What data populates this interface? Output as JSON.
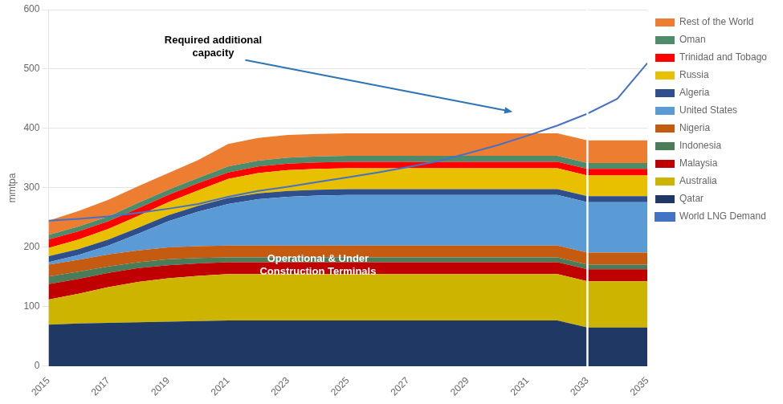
{
  "chart_data": {
    "type": "area",
    "stacked": true,
    "x": [
      2015,
      2016,
      2017,
      2018,
      2019,
      2020,
      2021,
      2022,
      2023,
      2024,
      2025,
      2026,
      2027,
      2028,
      2029,
      2030,
      2031,
      2032,
      2033,
      2034,
      2035
    ],
    "xlim": [
      2015,
      2035
    ],
    "xticks": [
      2015,
      2017,
      2019,
      2021,
      2023,
      2025,
      2027,
      2029,
      2031,
      2033,
      2035
    ],
    "ylim": [
      0,
      600
    ],
    "yticks": [
      0,
      100,
      200,
      300,
      400,
      500,
      600
    ],
    "ylabel": "mmtpa",
    "grid": true,
    "legend": "right",
    "series": [
      {
        "name": "Qatar",
        "color": "#1F3864",
        "values": [
          70,
          72,
          73,
          74,
          75,
          76,
          77,
          77,
          77,
          77,
          77,
          77,
          77,
          77,
          77,
          77,
          77,
          77,
          65,
          65,
          65
        ]
      },
      {
        "name": "Australia",
        "color": "#CDB400",
        "values": [
          42,
          50,
          60,
          68,
          73,
          76,
          78,
          78,
          78,
          78,
          78,
          78,
          78,
          78,
          78,
          78,
          78,
          78,
          78,
          78,
          78
        ]
      },
      {
        "name": "Malaysia",
        "color": "#C00000",
        "values": [
          26,
          25,
          24,
          23,
          22,
          21,
          20,
          20,
          20,
          20,
          20,
          20,
          20,
          20,
          20,
          20,
          20,
          20,
          20,
          20,
          20
        ]
      },
      {
        "name": "Indonesia",
        "color": "#4A7C59",
        "values": [
          13,
          12,
          11,
          10,
          10,
          9,
          8,
          8,
          8,
          8,
          8,
          8,
          8,
          8,
          8,
          8,
          8,
          8,
          8,
          8,
          8
        ]
      },
      {
        "name": "Nigeria",
        "color": "#C55A11",
        "values": [
          20,
          20,
          20,
          20,
          20,
          20,
          20,
          20,
          20,
          20,
          20,
          20,
          20,
          20,
          20,
          20,
          20,
          20,
          20,
          20,
          20
        ]
      },
      {
        "name": "United States",
        "color": "#5B9BD5",
        "values": [
          4,
          8,
          15,
          28,
          44,
          58,
          70,
          78,
          82,
          84,
          85,
          85,
          85,
          85,
          85,
          85,
          85,
          85,
          85,
          85,
          85
        ]
      },
      {
        "name": "Algeria",
        "color": "#2E4F8C",
        "values": [
          10,
          10,
          10,
          10,
          10,
          10,
          10,
          10,
          10,
          10,
          10,
          10,
          10,
          10,
          10,
          10,
          10,
          10,
          10,
          10,
          10
        ]
      },
      {
        "name": "Russia",
        "color": "#E8C000",
        "values": [
          14,
          16,
          18,
          20,
          22,
          26,
          32,
          34,
          35,
          35,
          35,
          35,
          35,
          35,
          35,
          35,
          35,
          35,
          35,
          35,
          35
        ]
      },
      {
        "name": "Trinidad and Tobago",
        "color": "#FF0000",
        "values": [
          14,
          14,
          13,
          13,
          12,
          12,
          11,
          11,
          11,
          11,
          11,
          11,
          11,
          11,
          11,
          11,
          11,
          11,
          11,
          11,
          11
        ]
      },
      {
        "name": "Oman",
        "color": "#4E8B6A",
        "values": [
          8,
          8,
          8,
          9,
          9,
          9,
          10,
          10,
          10,
          10,
          10,
          10,
          10,
          10,
          10,
          10,
          10,
          10,
          10,
          10,
          10
        ]
      },
      {
        "name": "Rest of the World",
        "color": "#ED7D31",
        "values": [
          24,
          26,
          28,
          28,
          28,
          30,
          38,
          38,
          38,
          38,
          38,
          38,
          38,
          38,
          38,
          38,
          38,
          38,
          38,
          38,
          38
        ]
      },
      {
        "name": "World LNG Demand",
        "type": "line",
        "color": "#4472C4",
        "values": [
          245,
          248,
          252,
          258,
          265,
          273,
          285,
          295,
          302,
          310,
          318,
          326,
          335,
          345,
          358,
          372,
          388,
          405,
          425,
          450,
          510
        ]
      }
    ],
    "reference_lines": [
      {
        "x": 2033,
        "color": "#FFFFFF"
      }
    ],
    "annotations": [
      {
        "text": "Required additional\ncapacity",
        "x": 2020.5,
        "y": 518,
        "arrow_to": [
          2030.5,
          428
        ],
        "color": "#000000",
        "arrow_color": "#2E75B6"
      },
      {
        "text": "Operational & Under\nConstruction Terminals",
        "x": 2024,
        "y": 170,
        "color": "#FFFFFF"
      }
    ]
  }
}
